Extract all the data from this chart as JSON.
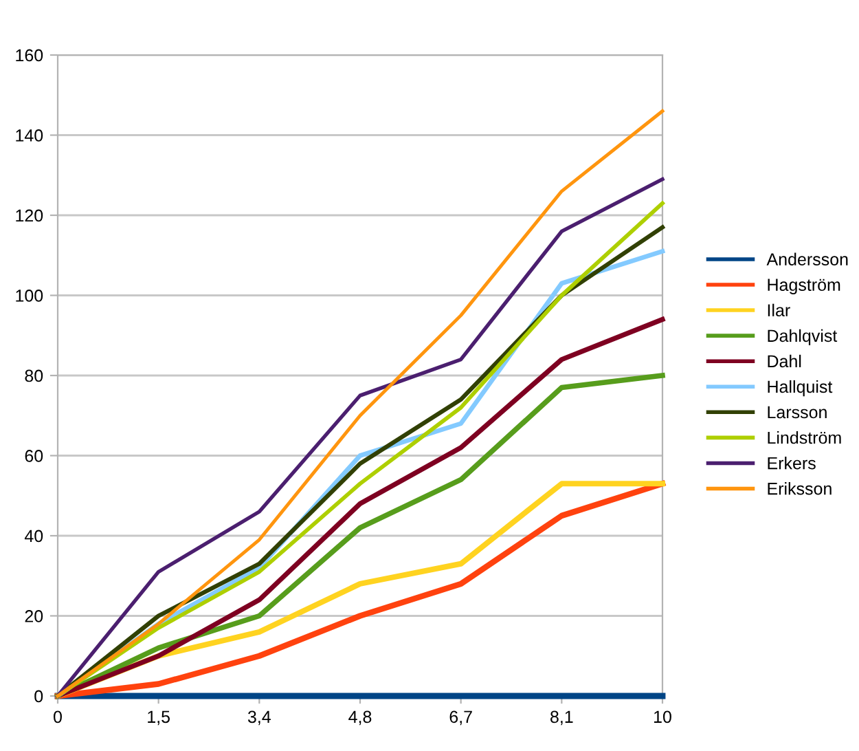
{
  "chart_data": {
    "type": "line",
    "categories": [
      "0",
      "1,5",
      "3,4",
      "4,8",
      "6,7",
      "8,1",
      "10"
    ],
    "ylim": [
      0,
      160
    ],
    "yticks": [
      0,
      20,
      40,
      60,
      80,
      100,
      120,
      140,
      160
    ],
    "grid": "y",
    "legend": "right",
    "marker": "none",
    "line_style": "solid",
    "series": [
      {
        "name": "Andersson",
        "color": "#004586",
        "values": [
          0,
          0,
          0,
          0,
          0,
          0,
          0
        ]
      },
      {
        "name": "Hagström",
        "color": "#ff420e",
        "values": [
          0,
          3,
          10,
          20,
          28,
          45,
          53
        ]
      },
      {
        "name": "Ilar",
        "color": "#ffd320",
        "values": [
          0,
          10,
          16,
          28,
          33,
          53,
          53
        ]
      },
      {
        "name": "Dahlqvist",
        "color": "#579d1c",
        "values": [
          0,
          12,
          20,
          42,
          54,
          77,
          80
        ]
      },
      {
        "name": "Dahl",
        "color": "#7e0021",
        "values": [
          0,
          10,
          24,
          48,
          62,
          84,
          94
        ]
      },
      {
        "name": "Hallquist",
        "color": "#83caff",
        "values": [
          0,
          18,
          32,
          60,
          68,
          103,
          111
        ]
      },
      {
        "name": "Larsson",
        "color": "#314004",
        "values": [
          0,
          20,
          33,
          58,
          74,
          100,
          117
        ]
      },
      {
        "name": "Lindström",
        "color": "#aecf00",
        "values": [
          0,
          17,
          31,
          53,
          72,
          100,
          123
        ]
      },
      {
        "name": "Erkers",
        "color": "#4b1f6f",
        "values": [
          0,
          31,
          46,
          75,
          84,
          116,
          129
        ]
      },
      {
        "name": "Eriksson",
        "color": "#ff950e",
        "values": [
          0,
          18,
          39,
          70,
          95,
          126,
          146
        ]
      }
    ]
  }
}
